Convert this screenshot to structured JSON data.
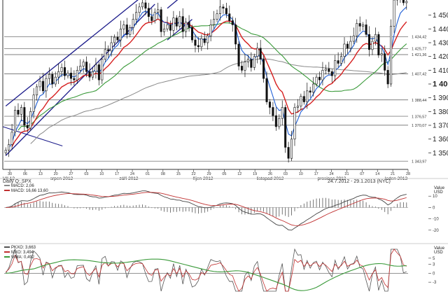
{
  "chart_data": [
    {
      "type": "candlestick",
      "ylim": [
        1340,
        1460
      ],
      "y_ticks": [
        1350,
        1360,
        1370,
        1380,
        1390,
        1400,
        1410,
        1420,
        1430,
        1440,
        1450
      ],
      "y_tick_labels": [
        "1 350",
        "1 360",
        "1 370",
        "1 380",
        "1 390",
        "1 400",
        "1 410",
        "1 420",
        "1 430",
        "1 440",
        "1 450"
      ],
      "x_day_labels": [
        "30",
        "06",
        "13",
        "20",
        "27",
        "03",
        "10",
        "17",
        "24",
        "01",
        "08",
        "15",
        "22",
        "29",
        "05",
        "12",
        "19",
        "26",
        "03",
        "10",
        "17",
        "24",
        "31",
        "07",
        "14",
        "21",
        "28"
      ],
      "month_labels": [
        "VII 12",
        "srpen 2012",
        "září 2012",
        "říjen 2012",
        "listopad 2012",
        "prosinec 2012",
        "leden 2013"
      ],
      "levels": [
        {
          "value": 1434.42,
          "label": "1 434,42"
        },
        {
          "value": 1425.77,
          "label": "1 425,77"
        },
        {
          "value": 1421.36,
          "label": "1 421,36"
        },
        {
          "value": 1407.42,
          "label": "1 407,42"
        },
        {
          "value": 1388.44,
          "label": "1 388,44"
        },
        {
          "value": 1376.57,
          "label": "1 376,57"
        },
        {
          "value": 1370.07,
          "label": "1 370,07"
        },
        {
          "value": 1343.97,
          "label": "1 343,97"
        }
      ],
      "channel": [
        {
          "from": [
            0,
            1348
          ],
          "to": [
            48,
            1458
          ]
        },
        {
          "from": [
            0,
            1384
          ],
          "to": [
            48,
            1471
          ]
        },
        {
          "from": [
            52,
            1432
          ],
          "to": [
            60,
            1447
          ]
        },
        {
          "from": [
            52,
            1455
          ],
          "to": [
            60,
            1470
          ]
        }
      ],
      "extra_trendline": {
        "from": [
          0,
          1369
        ],
        "to": [
          16,
          1355
        ]
      },
      "closes": [
        1352,
        1356,
        1365,
        1381,
        1378,
        1383,
        1370,
        1368,
        1380,
        1392,
        1398,
        1402,
        1395,
        1404,
        1407,
        1400,
        1405,
        1409,
        1412,
        1406,
        1408,
        1404,
        1403,
        1410,
        1413,
        1416,
        1409,
        1405,
        1409,
        1414,
        1403,
        1418,
        1425,
        1424,
        1430,
        1434,
        1432,
        1440,
        1443,
        1436,
        1441,
        1447,
        1452,
        1456,
        1459,
        1455,
        1449,
        1446,
        1452,
        1454,
        1438,
        1440,
        1443,
        1439,
        1448,
        1442,
        1449,
        1438,
        1445,
        1441,
        1432,
        1428,
        1427,
        1433,
        1430,
        1435,
        1443,
        1447,
        1451,
        1456,
        1455,
        1451,
        1446,
        1443,
        1429,
        1413,
        1410,
        1416,
        1418,
        1412,
        1420,
        1426,
        1418,
        1404,
        1387,
        1383,
        1377,
        1369,
        1375,
        1383,
        1354,
        1346,
        1360,
        1383,
        1384,
        1391,
        1387,
        1395,
        1394,
        1400,
        1405,
        1403,
        1410,
        1411,
        1409,
        1406,
        1417,
        1415,
        1420,
        1429,
        1426,
        1431,
        1435,
        1444,
        1442,
        1443,
        1436,
        1425,
        1431,
        1436,
        1421,
        1422,
        1410,
        1400,
        1442,
        1461,
        1462,
        1465,
        1459,
        1460
      ],
      "series": [
        {
          "name": "",
          "color": "#1f5fd6",
          "kind": "ema_fast"
        },
        {
          "name": "",
          "color": "#d62020",
          "kind": "ema_mid"
        },
        {
          "name": "",
          "color": "#3a9a3a",
          "kind": "sma_slow"
        },
        {
          "name": "",
          "color": "#8a8a8a",
          "kind": "sma_long"
        }
      ]
    },
    {
      "type": "line",
      "title": "Daily Q:.SPX",
      "date_range": "24.7.2012 - 29.1.2013 (NYC)",
      "axis_title": "Value\nUSD",
      "ylim": [
        -30,
        20
      ],
      "y_ticks": [
        10,
        0,
        -10,
        -20
      ],
      "y_tick_labels": [
        "10",
        "0",
        "-10",
        "-20"
      ],
      "legend": [
        {
          "text": "MACD: 2,06",
          "color": "#8a8a8a"
        },
        {
          "text": "MACD: 16,66   13,60",
          "color": "#c03030"
        }
      ],
      "series": [
        {
          "name": "MACD",
          "color": "#444444"
        },
        {
          "name": "Signal",
          "color": "#c03030"
        },
        {
          "name": "Histogram",
          "color": "#666666"
        }
      ]
    },
    {
      "type": "line",
      "axis_title": "Value\nUSD",
      "ylim": [
        -6,
        8
      ],
      "y_ticks": [
        5,
        3,
        0,
        -3
      ],
      "y_tick_labels": [
        "5",
        "3",
        "0",
        "-3"
      ],
      "legend": [
        {
          "text": "PKXO: 3,663",
          "color": "#555555"
        },
        {
          "text": "MXO: 3,494",
          "color": "#c03030"
        },
        {
          "text": "WMA: 0,492",
          "color": "#3a9a3a"
        }
      ],
      "series": [
        {
          "name": "PKXO",
          "color": "#555555"
        },
        {
          "name": "MXO",
          "color": "#c03030"
        },
        {
          "name": "WMA",
          "color": "#3a9a3a"
        }
      ]
    }
  ]
}
